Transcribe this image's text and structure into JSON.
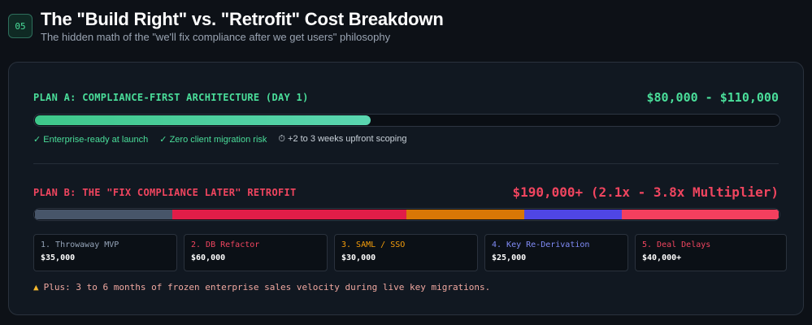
{
  "header": {
    "badge": "05",
    "title": "The \"Build Right\" vs. \"Retrofit\" Cost Breakdown",
    "subtitle": "The hidden math of the \"we'll fix compliance after we get users\" philosophy"
  },
  "plan_a": {
    "label": "PLAN A: COMPLIANCE-FIRST ARCHITECTURE (DAY 1)",
    "cost": "$80,000 - $110,000",
    "progress_fraction": 0.45,
    "features": [
      {
        "text": "✓ Enterprise-ready at launch",
        "kind": "ok"
      },
      {
        "text": "✓ Zero client migration risk",
        "kind": "ok"
      },
      {
        "text": "⏱ +2 to 3 weeks upfront scoping",
        "kind": "time"
      }
    ],
    "bar_color": "#4ade9a"
  },
  "plan_b": {
    "label": "PLAN B: THE \"FIX COMPLIANCE LATER\" RETROFIT",
    "cost": "$190,000+ (2.1x - 3.8x Multiplier)",
    "segments": [
      {
        "title": "1. Throwaway MVP",
        "value": "$35,000",
        "amount": 35000,
        "color": "#475569",
        "title_color": "#94a3b8"
      },
      {
        "title": "2. DB Refactor",
        "value": "$60,000",
        "amount": 60000,
        "color": "#e11d48",
        "title_color": "#f0455f"
      },
      {
        "title": "3. SAML / SSO",
        "value": "$30,000",
        "amount": 30000,
        "color": "#d97706",
        "title_color": "#f59e0b"
      },
      {
        "title": "4. Key Re-Derivation",
        "value": "$25,000",
        "amount": 25000,
        "color": "#4f46e5",
        "title_color": "#818cf8"
      },
      {
        "title": "5. Deal Delays",
        "value": "$40,000+",
        "amount": 40000,
        "color": "#f43f5e",
        "title_color": "#f0455f"
      }
    ],
    "warning": "Plus: 3 to 6 months of frozen enterprise sales velocity during live key migrations.",
    "warning_icon": "warning-triangle-icon"
  }
}
